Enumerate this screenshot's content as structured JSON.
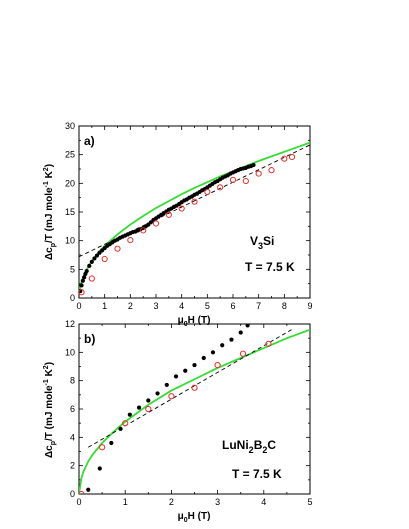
{
  "chart_data": [
    {
      "type": "scatter",
      "panel_label": "a)",
      "xlabel": "μ0H (T)",
      "ylabel": "Δcp/T (mJ mole-1 K2)",
      "xlim": [
        0,
        9
      ],
      "ylim": [
        0,
        30
      ],
      "x_ticks": [
        "0",
        "1",
        "2",
        "3",
        "4",
        "5",
        "6",
        "7",
        "8",
        "9"
      ],
      "y_ticks": [
        "0",
        "5",
        "10",
        "15",
        "20",
        "25",
        "30"
      ],
      "annotations": [
        "V3Si",
        "T = 7.5 K"
      ],
      "series": [
        {
          "marker": "filled-circle",
          "color": "#000000",
          "x": [
            0.05,
            0.1,
            0.15,
            0.2,
            0.25,
            0.3,
            0.4,
            0.5,
            0.6,
            0.7,
            0.8,
            0.9,
            1.0,
            1.1,
            1.2,
            1.3,
            1.4,
            1.5,
            1.6,
            1.7,
            1.8,
            1.9,
            2.0,
            2.1,
            2.2,
            2.3,
            2.4,
            2.5,
            2.6,
            2.7,
            2.8,
            2.9,
            3.0,
            3.1,
            3.2,
            3.3,
            3.4,
            3.5,
            3.6,
            3.7,
            3.8,
            3.9,
            4.0,
            4.1,
            4.2,
            4.3,
            4.4,
            4.5,
            4.6,
            4.7,
            4.8,
            4.9,
            5.0,
            5.1,
            5.2,
            5.3,
            5.4,
            5.5,
            5.6,
            5.7,
            5.8,
            5.9,
            6.0,
            6.1,
            6.2,
            6.3,
            6.4,
            6.5,
            6.6,
            6.7,
            6.8
          ],
          "y": [
            1.2,
            2.2,
            3.0,
            3.6,
            4.2,
            4.7,
            5.6,
            6.3,
            6.9,
            7.4,
            7.9,
            8.3,
            8.7,
            9.1,
            9.4,
            9.7,
            10.0,
            10.2,
            10.5,
            10.7,
            10.9,
            11.1,
            11.3,
            11.5,
            11.6,
            11.8,
            12.0,
            12.2,
            12.5,
            12.8,
            13.2,
            13.6,
            13.9,
            14.2,
            14.5,
            14.8,
            15.1,
            15.4,
            15.6,
            15.9,
            16.1,
            16.4,
            16.7,
            17.0,
            17.2,
            17.5,
            17.7,
            18.0,
            18.2,
            18.5,
            18.8,
            19.0,
            19.3,
            19.6,
            19.9,
            20.2,
            20.4,
            20.7,
            21.0,
            21.2,
            21.4,
            21.7,
            21.9,
            22.1,
            22.3,
            22.5,
            22.6,
            22.7,
            22.9,
            23.0,
            23.2
          ]
        },
        {
          "marker": "open-circle",
          "color": "#e8302a",
          "x": [
            0.1,
            0.5,
            1.0,
            1.5,
            2.0,
            2.5,
            3.0,
            3.5,
            4.0,
            4.5,
            5.0,
            5.5,
            6.0,
            6.5,
            7.0,
            7.5,
            8.0,
            8.3
          ],
          "y": [
            1.0,
            3.4,
            6.8,
            8.6,
            10.1,
            11.8,
            13.0,
            14.5,
            15.6,
            16.8,
            18.5,
            19.3,
            20.6,
            20.4,
            21.7,
            22.3,
            24.3,
            24.6
          ]
        },
        {
          "name": "",
          "marker": "line",
          "color": "#33dd33",
          "style": "solid",
          "x": [
            0.02,
            0.05,
            0.1,
            0.2,
            0.3,
            0.5,
            0.75,
            1.0,
            1.5,
            2.0,
            2.5,
            3.0,
            3.5,
            4.0,
            4.5,
            5.0,
            5.5,
            6.0,
            6.5,
            7.0,
            7.5,
            8.0,
            8.5,
            9.0
          ],
          "y": [
            1.2,
            2.1,
            2.9,
            4.1,
            5.0,
            6.4,
            7.9,
            9.1,
            11.1,
            12.8,
            14.3,
            15.7,
            16.9,
            18.1,
            19.2,
            20.2,
            21.2,
            22.1,
            23.0,
            23.9,
            24.7,
            25.5,
            26.3,
            27.1
          ]
        },
        {
          "name": "",
          "marker": "line",
          "color": "#000000",
          "style": "dashed",
          "x": [
            0,
            9
          ],
          "y": [
            7.2,
            26.7
          ]
        }
      ]
    },
    {
      "type": "scatter",
      "panel_label": "b)",
      "xlabel": "μ0H (T)",
      "ylabel": "Δcp/T (mJ mole-1 K2)",
      "xlim": [
        0,
        5
      ],
      "ylim": [
        0,
        12
      ],
      "x_ticks": [
        "0",
        "1",
        "2",
        "3",
        "4",
        "5"
      ],
      "y_ticks": [
        "0",
        "2",
        "4",
        "6",
        "8",
        "10",
        "12"
      ],
      "annotations": [
        "LuNi2B2C",
        "T = 7.5 K"
      ],
      "series": [
        {
          "marker": "filled-circle",
          "color": "#000000",
          "x": [
            0.2,
            0.45,
            0.7,
            0.9,
            1.1,
            1.3,
            1.5,
            1.7,
            1.9,
            2.1,
            2.3,
            2.5,
            2.7,
            2.9,
            3.1,
            3.3,
            3.5,
            3.65
          ],
          "y": [
            0.3,
            1.8,
            3.6,
            4.6,
            5.6,
            6.1,
            6.6,
            7.1,
            7.7,
            8.3,
            8.7,
            9.1,
            9.6,
            10.0,
            10.5,
            10.9,
            11.4,
            11.9
          ]
        },
        {
          "marker": "open-circle",
          "color": "#e8302a",
          "x": [
            0.05,
            0.5,
            1.0,
            1.5,
            2.0,
            2.5,
            3.0,
            3.55,
            4.1
          ],
          "y": [
            0.0,
            3.3,
            5.0,
            6.0,
            6.9,
            7.5,
            9.1,
            9.9,
            10.6
          ]
        },
        {
          "name": "",
          "marker": "line",
          "color": "#33dd33",
          "style": "solid",
          "x": [
            0.0,
            0.05,
            0.1,
            0.2,
            0.3,
            0.5,
            0.75,
            1.0,
            1.5,
            2.0,
            2.5,
            3.0,
            3.5,
            4.0,
            4.5,
            5.0
          ],
          "y": [
            0.0,
            1.1,
            1.6,
            2.3,
            2.8,
            3.6,
            4.4,
            5.1,
            6.3,
            7.3,
            8.1,
            8.9,
            9.6,
            10.3,
            11.0,
            11.6
          ]
        },
        {
          "name": "",
          "marker": "line",
          "color": "#000000",
          "style": "dashed",
          "x": [
            0.2,
            4.6
          ],
          "y": [
            3.3,
            11.6
          ]
        }
      ]
    }
  ]
}
